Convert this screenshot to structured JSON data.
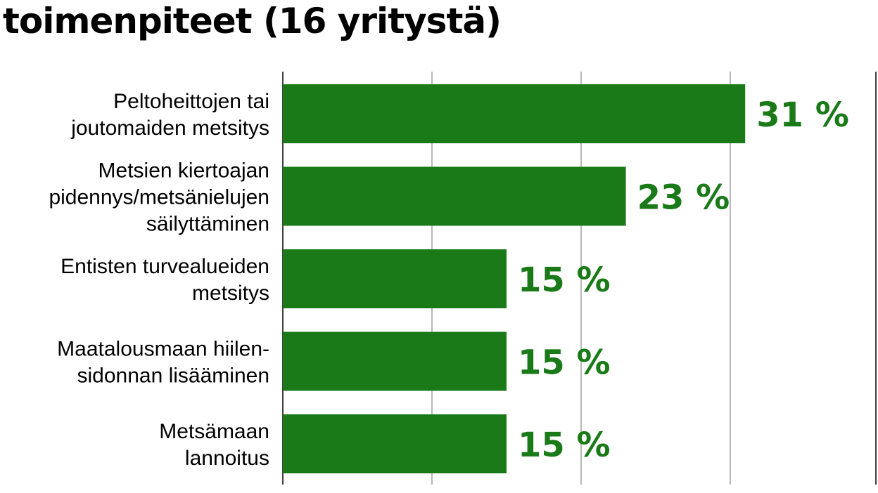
{
  "title": "toimenpiteet (16 yritystä)",
  "colors": {
    "bar": "#197a17",
    "label": "#197a17",
    "grid": "#8a8a8a",
    "axis": "#000000"
  },
  "chart_data": {
    "type": "bar",
    "orientation": "horizontal",
    "title": "toimenpiteet (16 yritystä)",
    "categories": [
      [
        "Peltoheittojen tai",
        "joutomaiden metsitys"
      ],
      [
        "Metsien kiertoajan",
        "pidennys/metsänielujen",
        "säilyttäminen"
      ],
      [
        "Entisten turvealueiden",
        "metsitys"
      ],
      [
        "Maatalousmaan hiilen-",
        "sidonnan lisääminen"
      ],
      [
        "Metsämaan",
        "lannoitus"
      ]
    ],
    "values": [
      31,
      23,
      15,
      15,
      15
    ],
    "value_labels": [
      "31 %",
      "23 %",
      "15 %",
      "15 %",
      "15 %"
    ],
    "unit": "%",
    "xlim": [
      0,
      40
    ],
    "grid": true,
    "gridlines_at": [
      10,
      20,
      30
    ]
  }
}
